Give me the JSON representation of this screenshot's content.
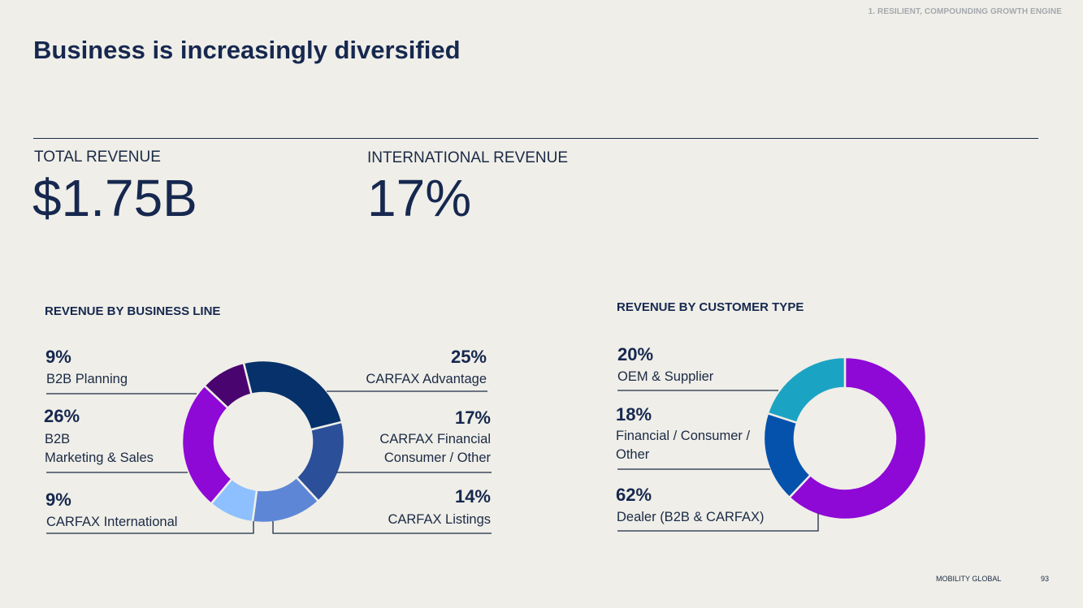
{
  "header": {
    "section_tag": "1. RESILIENT, COMPOUNDING GROWTH ENGINE",
    "title": "Business is increasingly diversified"
  },
  "kpis": {
    "total_revenue_label": "TOTAL REVENUE",
    "total_revenue_value": "$1.75B",
    "intl_revenue_label": "INTERNATIONAL REVENUE",
    "intl_revenue_value": "17%"
  },
  "chart_data": [
    {
      "type": "pie",
      "title": "REVENUE BY BUSINESS LINE",
      "hole": true,
      "slices": [
        {
          "label": "CARFAX Advantage",
          "label_lines": [
            "CARFAX Advantage"
          ],
          "pct_text": "25%",
          "value": 25,
          "color": "#06316a"
        },
        {
          "label": "CARFAX Financial Consumer / Other",
          "label_lines": [
            "CARFAX Financial",
            "Consumer / Other"
          ],
          "pct_text": "17%",
          "value": 17,
          "color": "#2b4f98"
        },
        {
          "label": "CARFAX Listings",
          "label_lines": [
            "CARFAX Listings"
          ],
          "pct_text": "14%",
          "value": 14,
          "color": "#5d86d6"
        },
        {
          "label": "CARFAX International",
          "label_lines": [
            "CARFAX International"
          ],
          "pct_text": "9%",
          "value": 9,
          "color": "#8ec0ff"
        },
        {
          "label": "B2B Marketing & Sales",
          "label_lines": [
            "B2B",
            "Marketing & Sales"
          ],
          "pct_text": "26%",
          "value": 26,
          "color": "#8e08d6"
        },
        {
          "label": "B2B Planning",
          "label_lines": [
            "B2B Planning"
          ],
          "pct_text": "9%",
          "value": 9,
          "color": "#4a0470"
        }
      ]
    },
    {
      "type": "pie",
      "title": "REVENUE BY CUSTOMER TYPE",
      "hole": true,
      "slices": [
        {
          "label": "Dealer (B2B & CARFAX)",
          "label_lines": [
            "Dealer (B2B & CARFAX)"
          ],
          "pct_text": "62%",
          "value": 62,
          "color": "#8e08d6"
        },
        {
          "label": "Financial / Consumer / Other",
          "label_lines": [
            "Financial / Consumer /",
            "Other"
          ],
          "pct_text": "18%",
          "value": 18,
          "color": "#0552ad"
        },
        {
          "label": "OEM & Supplier",
          "label_lines": [
            "OEM & Supplier"
          ],
          "pct_text": "20%",
          "value": 20,
          "color": "#1ba3c4"
        }
      ]
    }
  ],
  "footer": {
    "brand": "MOBILITY GLOBAL",
    "page_number": "93"
  }
}
